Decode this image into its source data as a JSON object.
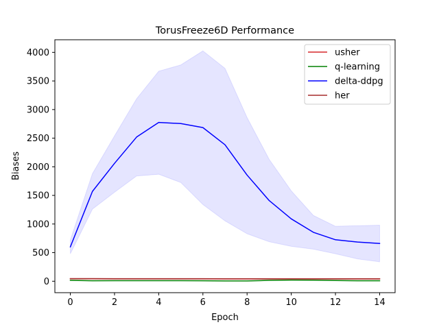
{
  "chart_data": {
    "type": "line",
    "title": "TorusFreeze6D Performance",
    "xlabel": "Epoch",
    "ylabel": "Biases",
    "xlim": [
      -0.7,
      14.7
    ],
    "ylim": [
      -200,
      4220
    ],
    "xticks": [
      0,
      2,
      4,
      6,
      8,
      10,
      12,
      14
    ],
    "yticks": [
      0,
      500,
      1000,
      1500,
      2000,
      2500,
      3000,
      3500,
      4000
    ],
    "legend_position": "top-right",
    "grid": false,
    "x": [
      0,
      1,
      2,
      3,
      4,
      5,
      6,
      7,
      8,
      9,
      10,
      11,
      12,
      13,
      14
    ],
    "series": [
      {
        "name": "usher",
        "color": "#d62728",
        "values": [
          42,
          42,
          41,
          41,
          41,
          41,
          41,
          40,
          40,
          40,
          40,
          40,
          40,
          40,
          40
        ]
      },
      {
        "name": "q-learning",
        "color": "#008000",
        "values": [
          15,
          8,
          10,
          10,
          10,
          10,
          8,
          5,
          5,
          15,
          20,
          18,
          12,
          8,
          8
        ]
      },
      {
        "name": "delta-ddpg",
        "color": "#0000ff",
        "band_color": "#0000ff",
        "values": [
          600,
          1570,
          2060,
          2520,
          2775,
          2755,
          2685,
          2385,
          1855,
          1410,
          1090,
          855,
          725,
          685,
          660
        ],
        "upper": [
          720,
          1880,
          2540,
          3190,
          3670,
          3780,
          4025,
          3720,
          2860,
          2130,
          1580,
          1150,
          960,
          970,
          980
        ],
        "lower": [
          480,
          1260,
          1555,
          1840,
          1870,
          1725,
          1340,
          1055,
          830,
          690,
          610,
          560,
          480,
          390,
          340
        ]
      },
      {
        "name": "her",
        "color": "#a52a2a",
        "values": [
          45,
          45,
          44,
          44,
          44,
          44,
          44,
          43,
          43,
          43,
          43,
          43,
          43,
          43,
          43
        ]
      }
    ]
  }
}
